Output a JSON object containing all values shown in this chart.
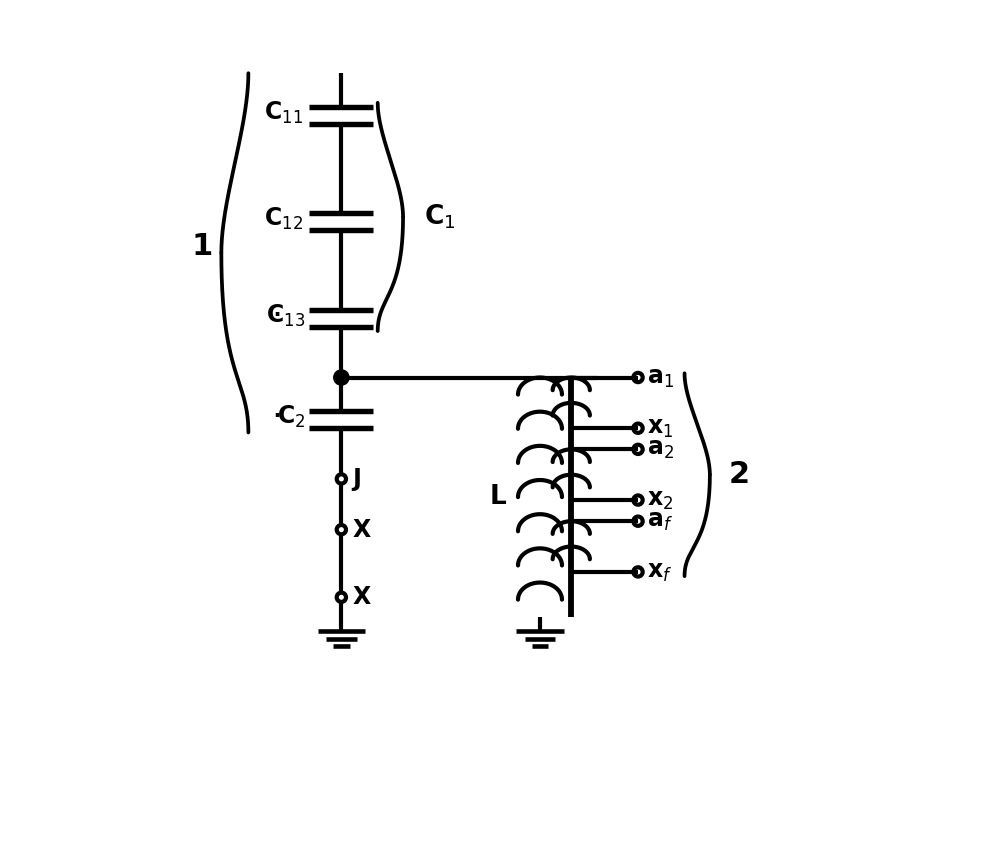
{
  "bg_color": "#ffffff",
  "line_color": "#000000",
  "lw": 3.0,
  "fig_width": 9.87,
  "fig_height": 8.48,
  "labels": {
    "C11": "C$_{11}$",
    "C12": "C$_{12}$",
    "C13": "C$_{13}$",
    "C2": "C$_{2}$",
    "C1": "C$_{1}$",
    "J": "J",
    "X_top": "X",
    "X_bot": "X",
    "L": "L",
    "a1": "a$_{1}$",
    "x1": "x$_{1}$",
    "a2": "a$_{2}$",
    "x2": "x$_{2}$",
    "af": "a$_{f}$",
    "xf": "x$_{f}$",
    "label1": "1",
    "label2": "2"
  },
  "font_size": 17
}
